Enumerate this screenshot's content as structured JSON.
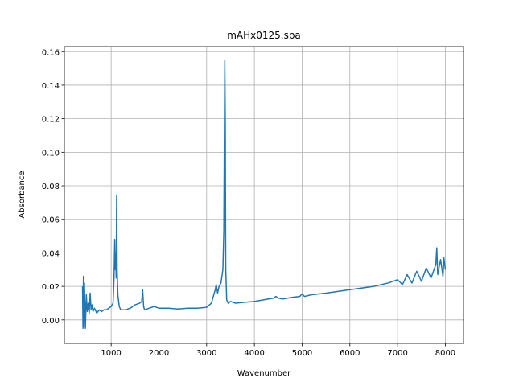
{
  "chart_data": {
    "type": "line",
    "title": "mAHx0125.spa",
    "x_label": "Wavenumber",
    "y_label": "Absorbance",
    "xlim": [
      20,
      8380
    ],
    "ylim": [
      -0.014,
      0.163
    ],
    "grid": true,
    "xticks": [
      1000,
      2000,
      3000,
      4000,
      5000,
      6000,
      7000,
      8000
    ],
    "yticks": [
      {
        "value": 0,
        "label": "0.00"
      },
      {
        "value": 0.02,
        "label": "0.02"
      },
      {
        "value": 0.04,
        "label": "0.04"
      },
      {
        "value": 0.06,
        "label": "0.06"
      },
      {
        "value": 0.08,
        "label": "0.08"
      },
      {
        "value": 0.1,
        "label": "0.10"
      },
      {
        "value": 0.12,
        "label": "0.12"
      },
      {
        "value": 0.14,
        "label": "0.14"
      },
      {
        "value": 0.16,
        "label": "0.16"
      }
    ],
    "color": "#1f77b4",
    "x": [
      400,
      410,
      420,
      430,
      440,
      460,
      480,
      500,
      520,
      540,
      560,
      580,
      600,
      620,
      650,
      700,
      750,
      800,
      850,
      900,
      950,
      1000,
      1040,
      1060,
      1075,
      1085,
      1095,
      1105,
      1115,
      1125,
      1140,
      1170,
      1200,
      1300,
      1400,
      1500,
      1600,
      1640,
      1660,
      1680,
      1700,
      1800,
      1900,
      2000,
      2200,
      2400,
      2600,
      2800,
      3000,
      3100,
      3180,
      3200,
      3230,
      3260,
      3300,
      3340,
      3360,
      3380,
      3390,
      3400,
      3420,
      3450,
      3500,
      3600,
      3800,
      4000,
      4200,
      4400,
      4450,
      4500,
      4600,
      4800,
      4950,
      5000,
      5050,
      5200,
      5500,
      6000,
      6500,
      6800,
      7000,
      7100,
      7200,
      7300,
      7400,
      7500,
      7600,
      7700,
      7800,
      7820,
      7840,
      7900,
      7950,
      7970,
      8000
    ],
    "values": [
      0.02,
      -0.005,
      0.026,
      -0.004,
      0.022,
      -0.005,
      0.015,
      0.005,
      0.01,
      0.004,
      0.016,
      0.006,
      0.009,
      0.005,
      0.007,
      0.004,
      0.006,
      0.005,
      0.006,
      0.006,
      0.007,
      0.008,
      0.01,
      0.025,
      0.048,
      0.03,
      0.04,
      0.025,
      0.074,
      0.03,
      0.015,
      0.008,
      0.006,
      0.006,
      0.007,
      0.009,
      0.01,
      0.011,
      0.018,
      0.008,
      0.006,
      0.007,
      0.008,
      0.007,
      0.007,
      0.0065,
      0.007,
      0.007,
      0.0075,
      0.01,
      0.018,
      0.021,
      0.016,
      0.02,
      0.022,
      0.03,
      0.053,
      0.155,
      0.12,
      0.03,
      0.012,
      0.01,
      0.011,
      0.01,
      0.0105,
      0.011,
      0.012,
      0.013,
      0.014,
      0.013,
      0.0125,
      0.0135,
      0.014,
      0.0155,
      0.014,
      0.015,
      0.016,
      0.018,
      0.02,
      0.022,
      0.024,
      0.021,
      0.027,
      0.022,
      0.029,
      0.023,
      0.031,
      0.025,
      0.033,
      0.043,
      0.027,
      0.036,
      0.026,
      0.037,
      0.03
    ]
  }
}
